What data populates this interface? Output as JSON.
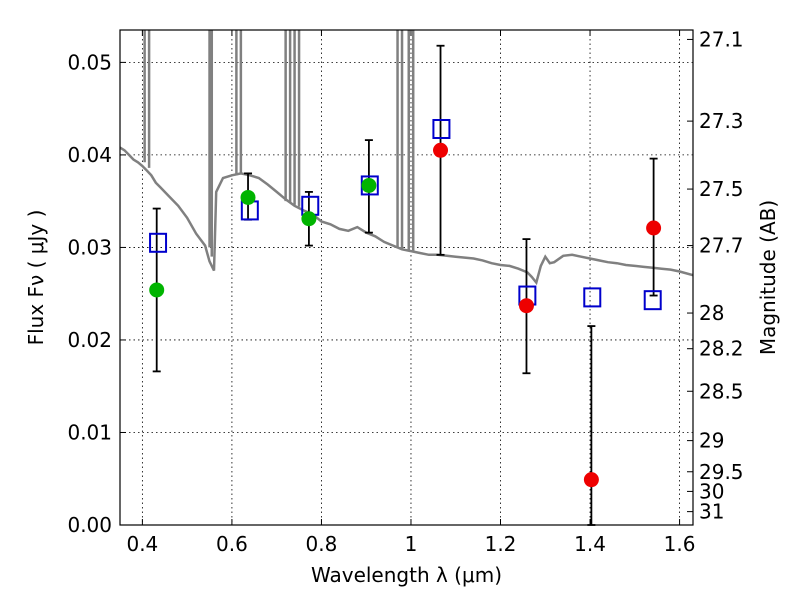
{
  "chart_data": {
    "type": "scatter",
    "title": "",
    "xlabel": "Wavelength  λ (μm)",
    "ylabel": "Flux  Fν  ( μJy )",
    "y2label": "Magnitude (AB)",
    "xlim": [
      0.35,
      1.63
    ],
    "ylim": [
      0.0,
      0.0535
    ],
    "x_ticks": [
      0.4,
      0.6,
      0.8,
      1.0,
      1.2,
      1.4,
      1.6
    ],
    "x_tick_labels": [
      "0.4",
      "0.6",
      "0.8",
      "1",
      "1.2",
      "1.4",
      "1.6"
    ],
    "y_ticks": [
      0.0,
      0.01,
      0.02,
      0.03,
      0.04,
      0.05
    ],
    "y_tick_labels": [
      "0.00",
      "0.01",
      "0.02",
      "0.03",
      "0.04",
      "0.05"
    ],
    "y2_ticks": [
      {
        "label": "27.1",
        "mag": 27.1
      },
      {
        "label": "27.3",
        "mag": 27.3
      },
      {
        "label": "27.5",
        "mag": 27.5
      },
      {
        "label": "27.7",
        "mag": 27.7
      },
      {
        "label": "28",
        "mag": 28.0
      },
      {
        "label": "28.2",
        "mag": 28.2
      },
      {
        "label": "28.5",
        "mag": 28.5
      },
      {
        "label": "29",
        "mag": 29.0
      },
      {
        "label": "29.5",
        "mag": 29.5
      },
      {
        "label": "30",
        "mag": 30.0
      },
      {
        "label": "31",
        "mag": 31.0
      }
    ],
    "grid": true,
    "colors": {
      "model": "#808080",
      "green": "#00b400",
      "red": "#ee0000",
      "squares": "#0000cc",
      "errorbar": "#000000"
    },
    "series": [
      {
        "kind": "line",
        "points": [
          [
            0.35,
            0.0408
          ],
          [
            0.36,
            0.0405
          ],
          [
            0.37,
            0.04
          ],
          [
            0.38,
            0.0395
          ],
          [
            0.39,
            0.0392
          ],
          [
            0.4,
            0.0388
          ],
          [
            0.41,
            0.0383
          ],
          [
            0.42,
            0.0378
          ],
          [
            0.43,
            0.037
          ],
          [
            0.44,
            0.0365
          ],
          [
            0.46,
            0.0355
          ],
          [
            0.48,
            0.0345
          ],
          [
            0.5,
            0.0332
          ],
          [
            0.52,
            0.0315
          ],
          [
            0.54,
            0.0302
          ],
          [
            0.55,
            0.0285
          ],
          [
            0.56,
            0.0275
          ],
          [
            0.565,
            0.036
          ],
          [
            0.58,
            0.0375
          ],
          [
            0.6,
            0.0378
          ],
          [
            0.62,
            0.038
          ],
          [
            0.64,
            0.0378
          ],
          [
            0.66,
            0.0375
          ],
          [
            0.68,
            0.0368
          ],
          [
            0.7,
            0.036
          ],
          [
            0.72,
            0.0352
          ],
          [
            0.74,
            0.0345
          ],
          [
            0.76,
            0.034
          ],
          [
            0.78,
            0.0336
          ],
          [
            0.8,
            0.0328
          ],
          [
            0.82,
            0.0325
          ],
          [
            0.84,
            0.032
          ],
          [
            0.86,
            0.0318
          ],
          [
            0.88,
            0.0322
          ],
          [
            0.9,
            0.0316
          ],
          [
            0.92,
            0.0312
          ],
          [
            0.94,
            0.0306
          ],
          [
            0.96,
            0.0302
          ],
          [
            0.98,
            0.0298
          ],
          [
            1.0,
            0.0296
          ],
          [
            1.02,
            0.0294
          ],
          [
            1.04,
            0.0292
          ],
          [
            1.06,
            0.0292
          ],
          [
            1.08,
            0.0291
          ],
          [
            1.1,
            0.029
          ],
          [
            1.12,
            0.0289
          ],
          [
            1.14,
            0.0288
          ],
          [
            1.16,
            0.0286
          ],
          [
            1.18,
            0.0283
          ],
          [
            1.2,
            0.0281
          ],
          [
            1.22,
            0.028
          ],
          [
            1.24,
            0.0277
          ],
          [
            1.26,
            0.0273
          ],
          [
            1.27,
            0.0268
          ],
          [
            1.28,
            0.0262
          ],
          [
            1.29,
            0.028
          ],
          [
            1.3,
            0.029
          ],
          [
            1.31,
            0.0283
          ],
          [
            1.32,
            0.0284
          ],
          [
            1.34,
            0.0291
          ],
          [
            1.36,
            0.0292
          ],
          [
            1.38,
            0.029
          ],
          [
            1.4,
            0.0288
          ],
          [
            1.42,
            0.0286
          ],
          [
            1.44,
            0.0284
          ],
          [
            1.46,
            0.0283
          ],
          [
            1.48,
            0.0281
          ],
          [
            1.5,
            0.028
          ],
          [
            1.52,
            0.0279
          ],
          [
            1.54,
            0.0278
          ],
          [
            1.56,
            0.0277
          ],
          [
            1.58,
            0.0276
          ],
          [
            1.6,
            0.0274
          ],
          [
            1.63,
            0.027
          ]
        ],
        "spikes": [
          {
            "x": 0.405,
            "base": 0.0392
          },
          {
            "x": 0.415,
            "base": 0.0386
          },
          {
            "x": 0.55,
            "base": 0.03
          },
          {
            "x": 0.555,
            "base": 0.029
          },
          {
            "x": 0.61,
            "base": 0.0378
          },
          {
            "x": 0.62,
            "base": 0.038
          },
          {
            "x": 0.72,
            "base": 0.035
          },
          {
            "x": 0.73,
            "base": 0.0348
          },
          {
            "x": 0.74,
            "base": 0.0346
          },
          {
            "x": 0.75,
            "base": 0.0344
          },
          {
            "x": 0.97,
            "base": 0.03
          },
          {
            "x": 0.98,
            "base": 0.0298
          },
          {
            "x": 0.995,
            "base": 0.0296
          },
          {
            "x": 1.005,
            "base": 0.0295
          }
        ]
      },
      {
        "kind": "squares",
        "points": [
          [
            0.435,
            0.0305
          ],
          [
            0.64,
            0.034
          ],
          [
            0.775,
            0.0345
          ],
          [
            0.908,
            0.0367
          ],
          [
            1.068,
            0.0428
          ],
          [
            1.26,
            0.0248
          ],
          [
            1.405,
            0.0246
          ],
          [
            1.54,
            0.0243
          ]
        ]
      },
      {
        "kind": "green-circles",
        "points": [
          {
            "x": 0.432,
            "y": 0.0254,
            "ylo": 0.0166,
            "yhi": 0.0342
          },
          {
            "x": 0.636,
            "y": 0.0354,
            "ylo": 0.033,
            "yhi": 0.038
          },
          {
            "x": 0.772,
            "y": 0.0331,
            "ylo": 0.0302,
            "yhi": 0.036
          },
          {
            "x": 0.906,
            "y": 0.0367,
            "ylo": 0.0316,
            "yhi": 0.0416
          }
        ]
      },
      {
        "kind": "red-circles",
        "points": [
          {
            "x": 1.066,
            "y": 0.0405,
            "ylo": 0.0292,
            "yhi": 0.0518
          },
          {
            "x": 1.258,
            "y": 0.0237,
            "ylo": 0.0164,
            "yhi": 0.0309
          },
          {
            "x": 1.403,
            "y": 0.0049,
            "ylo": 0.0,
            "yhi": 0.0215
          },
          {
            "x": 1.542,
            "y": 0.0321,
            "ylo": 0.0248,
            "yhi": 0.0396
          }
        ]
      }
    ]
  }
}
